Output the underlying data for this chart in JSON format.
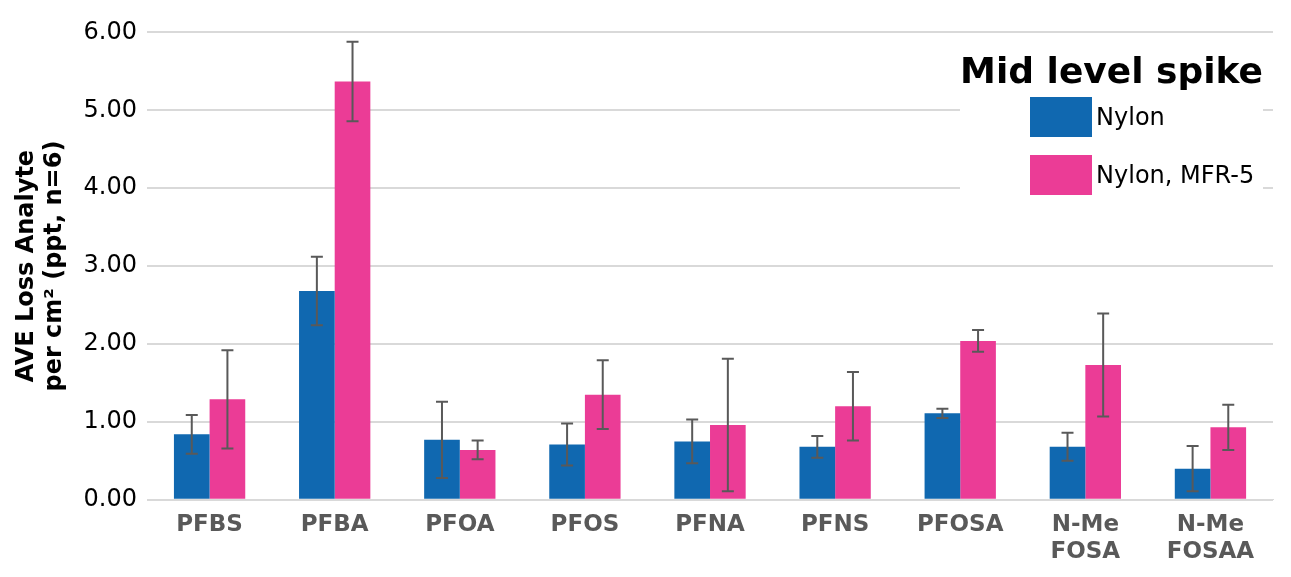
{
  "chart_data": {
    "type": "bar",
    "ylabel": "AVE Loss Analyte per cm² (ppt, n=6)",
    "legend_title": "Mid level spike",
    "categories": [
      "PFBS",
      "PFBA",
      "PFOA",
      "PFOS",
      "PFNA",
      "PFNS",
      "PFOSA",
      "N-Me FOSA",
      "N-Me FOSAA"
    ],
    "series": [
      {
        "name": "Nylon",
        "color": "#1068b0",
        "values": [
          0.84,
          2.68,
          0.77,
          0.71,
          0.75,
          0.68,
          1.11,
          0.68,
          0.4
        ],
        "errors": [
          0.25,
          0.44,
          0.49,
          0.27,
          0.28,
          0.14,
          0.06,
          0.18,
          0.29
        ]
      },
      {
        "name": "Nylon, MFR-5",
        "color": "#eb3c96",
        "values": [
          1.29,
          5.37,
          0.64,
          1.35,
          0.96,
          1.2,
          2.04,
          1.73,
          0.93
        ],
        "errors": [
          0.63,
          0.51,
          0.12,
          0.44,
          0.85,
          0.44,
          0.14,
          0.66,
          0.29
        ]
      }
    ],
    "ylim": [
      0,
      6
    ],
    "yticks": [
      {
        "value": 0,
        "label": "0.00"
      },
      {
        "value": 1,
        "label": "1.00"
      },
      {
        "value": 2,
        "label": "2.00"
      },
      {
        "value": 3,
        "label": "3.00"
      },
      {
        "value": 4,
        "label": "4.00"
      },
      {
        "value": 5,
        "label": "5.00"
      },
      {
        "value": 6,
        "label": "6.00"
      }
    ],
    "grid": "y",
    "legend": "top right"
  }
}
